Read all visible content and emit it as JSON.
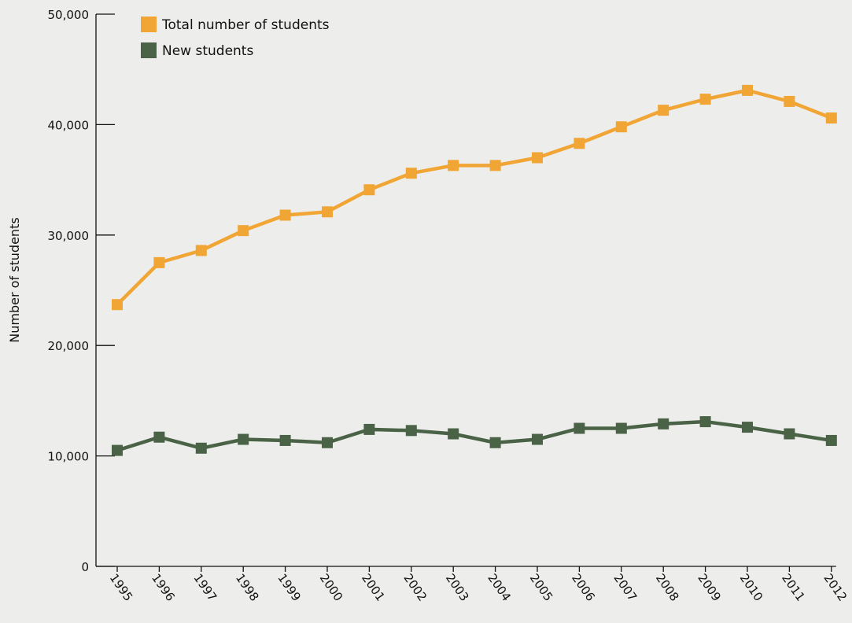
{
  "chart_data": {
    "type": "line",
    "title": "",
    "xlabel": "",
    "ylabel": "Number of students",
    "ylim": [
      0,
      50000
    ],
    "yticks": [
      0,
      10000,
      20000,
      30000,
      40000,
      50000
    ],
    "ytick_labels": [
      "0",
      "10,000",
      "20,000",
      "30,000",
      "40,000",
      "50,000"
    ],
    "categories": [
      "1995",
      "1996",
      "1997",
      "1998",
      "1999",
      "2000",
      "2001",
      "2002",
      "2003",
      "2004",
      "2005",
      "2006",
      "2007",
      "2008",
      "2009",
      "2010",
      "2011",
      "2012"
    ],
    "grid": false,
    "legend_position": "top-left",
    "series": [
      {
        "name": "Total number of students",
        "color": "#f0a535",
        "marker": "square",
        "values": [
          23700,
          27500,
          28600,
          30400,
          31800,
          32100,
          34100,
          35600,
          36300,
          36300,
          37000,
          38300,
          39800,
          41300,
          42300,
          43100,
          42100,
          40600
        ]
      },
      {
        "name": "New students",
        "color": "#4a6346",
        "marker": "square",
        "values": [
          10500,
          11700,
          10700,
          11500,
          11400,
          11200,
          12400,
          12300,
          12000,
          11200,
          11500,
          12500,
          12500,
          12900,
          13100,
          12600,
          12000,
          11400
        ]
      }
    ]
  }
}
